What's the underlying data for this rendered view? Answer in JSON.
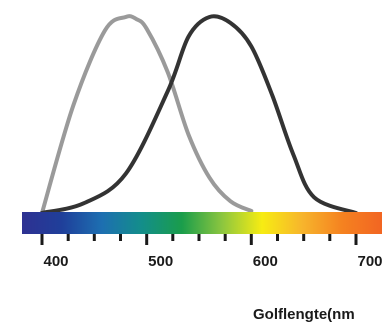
{
  "chart_data": {
    "type": "line",
    "xlabel": "Golflengte(nm",
    "ticks_labeled": [
      400,
      500,
      600,
      700
    ],
    "xlim": [
      400,
      700
    ],
    "ylim": [
      0,
      1
    ],
    "grid": false,
    "legend": "none",
    "series": [
      {
        "color": "#9a9a9a",
        "x": [
          400,
          430,
          460,
          480,
          490,
          500,
          520,
          540,
          560,
          580,
          600
        ],
        "y": [
          0.0,
          0.55,
          0.93,
          1.0,
          0.99,
          0.94,
          0.72,
          0.4,
          0.18,
          0.06,
          0.01
        ]
      },
      {
        "color": "#333333",
        "x": [
          400,
          440,
          480,
          520,
          540,
          560,
          580,
          600,
          620,
          640,
          660,
          700
        ],
        "y": [
          0.0,
          0.05,
          0.2,
          0.62,
          0.9,
          1.0,
          0.97,
          0.85,
          0.6,
          0.3,
          0.08,
          0.0
        ]
      }
    ],
    "spectrum_colors": [
      "#2e3192",
      "#1f3f9a",
      "#1d6fb1",
      "#138e8a",
      "#1a9d4b",
      "#8cc63f",
      "#f7ec13",
      "#f7b52c",
      "#f58220",
      "#f26522"
    ]
  }
}
